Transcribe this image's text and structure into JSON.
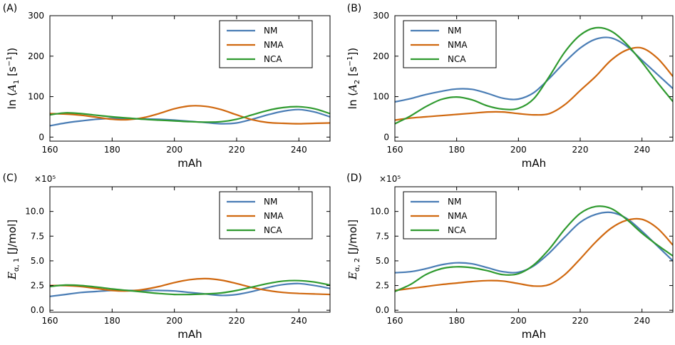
{
  "legend": [
    "NM",
    "NMA",
    "NCA"
  ],
  "colors": {
    "NM": "#4a7db5",
    "NMA": "#d0680f",
    "NCA": "#2f9a2f"
  },
  "chart_data": [
    {
      "type": "line",
      "panel": "(A)",
      "xlabel": "mAh",
      "ylabel_parts": {
        "pre": "ln (",
        "sym": "A",
        "sub": "1",
        "post": " [s",
        "sup": "−1",
        "end": "])"
      },
      "scale_text": "",
      "xlim": [
        160,
        250
      ],
      "ylim": [
        -10,
        300
      ],
      "xticks": [
        160,
        180,
        200,
        220,
        240
      ],
      "yticks": [
        0,
        100,
        200,
        300
      ],
      "ytick_labels": [
        "0",
        "100",
        "200",
        "300"
      ],
      "legend_position": "top-right",
      "series": [
        {
          "name": "NM",
          "x": [
            160,
            165,
            170,
            175,
            180,
            185,
            190,
            195,
            200,
            205,
            210,
            215,
            220,
            225,
            230,
            235,
            240,
            245,
            250
          ],
          "y": [
            28,
            35,
            40,
            44,
            46,
            46,
            45,
            44,
            42,
            39,
            36,
            33,
            35,
            44,
            55,
            64,
            68,
            62,
            50
          ]
        },
        {
          "name": "NMA",
          "x": [
            160,
            165,
            170,
            175,
            180,
            185,
            190,
            195,
            200,
            205,
            210,
            215,
            220,
            225,
            230,
            235,
            240,
            245,
            250
          ],
          "y": [
            58,
            57,
            54,
            49,
            44,
            43,
            48,
            58,
            70,
            77,
            76,
            68,
            55,
            43,
            36,
            34,
            33,
            34,
            35
          ]
        },
        {
          "name": "NCA",
          "x": [
            160,
            165,
            170,
            175,
            180,
            185,
            190,
            195,
            200,
            205,
            210,
            215,
            220,
            225,
            230,
            235,
            240,
            245,
            250
          ],
          "y": [
            55,
            60,
            58,
            54,
            50,
            47,
            44,
            42,
            40,
            38,
            37,
            38,
            44,
            55,
            66,
            73,
            75,
            70,
            58
          ]
        }
      ]
    },
    {
      "type": "line",
      "panel": "(B)",
      "xlabel": "mAh",
      "ylabel_parts": {
        "pre": "ln (",
        "sym": "A",
        "sub": "2",
        "post": " [s",
        "sup": "−1",
        "end": "])"
      },
      "scale_text": "",
      "xlim": [
        160,
        250
      ],
      "ylim": [
        -10,
        300
      ],
      "xticks": [
        160,
        180,
        200,
        220,
        240
      ],
      "yticks": [
        0,
        100,
        200,
        300
      ],
      "ytick_labels": [
        "0",
        "100",
        "200",
        "300"
      ],
      "legend_position": "top-left",
      "series": [
        {
          "name": "NM",
          "x": [
            160,
            165,
            170,
            175,
            180,
            185,
            190,
            195,
            200,
            205,
            210,
            215,
            220,
            225,
            230,
            235,
            240,
            245,
            250
          ],
          "y": [
            87,
            95,
            105,
            113,
            119,
            118,
            108,
            96,
            94,
            110,
            145,
            185,
            220,
            242,
            245,
            225,
            190,
            155,
            120
          ]
        },
        {
          "name": "NMA",
          "x": [
            160,
            165,
            170,
            175,
            180,
            185,
            190,
            195,
            200,
            205,
            210,
            215,
            220,
            225,
            230,
            235,
            240,
            245,
            250
          ],
          "y": [
            42,
            47,
            50,
            53,
            56,
            59,
            62,
            62,
            58,
            55,
            58,
            80,
            115,
            150,
            190,
            215,
            220,
            195,
            150
          ]
        },
        {
          "name": "NCA",
          "x": [
            160,
            165,
            170,
            175,
            180,
            185,
            190,
            195,
            200,
            205,
            210,
            215,
            220,
            225,
            230,
            235,
            240,
            245,
            250
          ],
          "y": [
            33,
            52,
            75,
            93,
            99,
            92,
            77,
            69,
            71,
            95,
            150,
            210,
            252,
            270,
            262,
            230,
            185,
            135,
            88
          ]
        }
      ]
    },
    {
      "type": "line",
      "panel": "(C)",
      "xlabel": "mAh",
      "ylabel_parts": {
        "pre": "",
        "sym": "E",
        "sub": "α, 1",
        "post": "  [J/mol]",
        "sup": "",
        "end": ""
      },
      "scale_text": "×10⁵",
      "xlim": [
        160,
        250
      ],
      "ylim": [
        -0.2,
        12.5
      ],
      "xticks": [
        160,
        180,
        200,
        220,
        240
      ],
      "yticks": [
        0,
        2.5,
        5,
        7.5,
        10
      ],
      "ytick_labels": [
        "0.0",
        "2.5",
        "5.0",
        "7.5",
        "10.0"
      ],
      "legend_position": "top-right",
      "series": [
        {
          "name": "NM",
          "x": [
            160,
            165,
            170,
            175,
            180,
            185,
            190,
            195,
            200,
            205,
            210,
            215,
            220,
            225,
            230,
            235,
            240,
            245,
            250
          ],
          "y": [
            1.4,
            1.6,
            1.8,
            1.9,
            2.0,
            2.0,
            2.0,
            2.0,
            1.95,
            1.8,
            1.65,
            1.5,
            1.6,
            1.9,
            2.3,
            2.6,
            2.7,
            2.5,
            2.2
          ]
        },
        {
          "name": "NMA",
          "x": [
            160,
            165,
            170,
            175,
            180,
            185,
            190,
            195,
            200,
            205,
            210,
            215,
            220,
            225,
            230,
            235,
            240,
            245,
            250
          ],
          "y": [
            2.5,
            2.5,
            2.4,
            2.2,
            2.0,
            1.95,
            2.1,
            2.4,
            2.8,
            3.1,
            3.2,
            3.05,
            2.7,
            2.3,
            2.0,
            1.8,
            1.7,
            1.65,
            1.6
          ]
        },
        {
          "name": "NCA",
          "x": [
            160,
            165,
            170,
            175,
            180,
            185,
            190,
            195,
            200,
            205,
            210,
            215,
            220,
            225,
            230,
            235,
            240,
            245,
            250
          ],
          "y": [
            2.4,
            2.55,
            2.5,
            2.35,
            2.15,
            2.0,
            1.85,
            1.7,
            1.6,
            1.6,
            1.65,
            1.75,
            2.0,
            2.35,
            2.7,
            2.95,
            3.0,
            2.85,
            2.55
          ]
        }
      ]
    },
    {
      "type": "line",
      "panel": "(D)",
      "xlabel": "mAh",
      "ylabel_parts": {
        "pre": "",
        "sym": "E",
        "sub": "α, 2",
        "post": "  [J/mol]",
        "sup": "",
        "end": ""
      },
      "scale_text": "×10⁵",
      "xlim": [
        160,
        250
      ],
      "ylim": [
        -0.2,
        12.5
      ],
      "xticks": [
        160,
        180,
        200,
        220,
        240
      ],
      "yticks": [
        0,
        2.5,
        5,
        7.5,
        10
      ],
      "ytick_labels": [
        "0.0",
        "2.5",
        "5.0",
        "7.5",
        "10.0"
      ],
      "legend_position": "top-left",
      "series": [
        {
          "name": "NM",
          "x": [
            160,
            165,
            170,
            175,
            180,
            185,
            190,
            195,
            200,
            205,
            210,
            215,
            220,
            225,
            230,
            235,
            240,
            245,
            250
          ],
          "y": [
            3.8,
            3.9,
            4.2,
            4.6,
            4.8,
            4.7,
            4.3,
            3.9,
            3.85,
            4.5,
            5.8,
            7.4,
            8.9,
            9.7,
            9.9,
            9.3,
            8.0,
            6.5,
            5.0
          ]
        },
        {
          "name": "NMA",
          "x": [
            160,
            165,
            170,
            175,
            180,
            185,
            190,
            195,
            200,
            205,
            210,
            215,
            220,
            225,
            230,
            235,
            240,
            245,
            250
          ],
          "y": [
            2.0,
            2.2,
            2.4,
            2.6,
            2.75,
            2.9,
            3.0,
            2.95,
            2.7,
            2.45,
            2.6,
            3.6,
            5.2,
            6.9,
            8.3,
            9.1,
            9.2,
            8.3,
            6.6
          ]
        },
        {
          "name": "NCA",
          "x": [
            160,
            165,
            170,
            175,
            180,
            185,
            190,
            195,
            200,
            205,
            210,
            215,
            220,
            225,
            230,
            235,
            240,
            245,
            250
          ],
          "y": [
            1.9,
            2.6,
            3.6,
            4.2,
            4.4,
            4.3,
            4.0,
            3.6,
            3.7,
            4.6,
            6.2,
            8.2,
            9.8,
            10.5,
            10.3,
            9.2,
            7.8,
            6.6,
            5.5
          ]
        }
      ]
    }
  ]
}
